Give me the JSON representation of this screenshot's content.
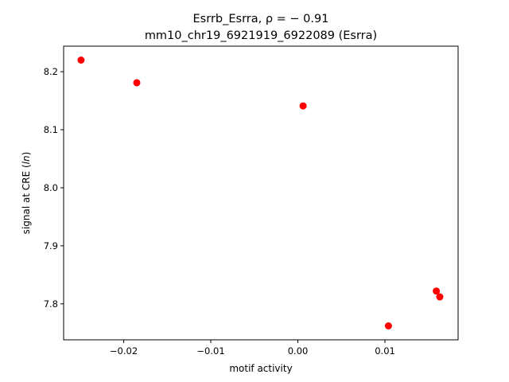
{
  "chart_data": {
    "type": "scatter",
    "title": "Esrrb_Esrra, ρ = − 0.91",
    "subtitle": "mm10_chr19_6921919_6922089 (Esrra)",
    "xlabel": "motif activity",
    "ylabel": "signal at CRE (ln)",
    "ylabel_main": "signal at CRE (",
    "ylabel_italic": "ln",
    "ylabel_end": ")",
    "xlim": [
      -0.0269,
      0.0184
    ],
    "ylim": [
      7.738,
      8.244
    ],
    "x_ticks": [
      -0.02,
      -0.01,
      0.0,
      0.01
    ],
    "x_tick_labels": [
      "−0.02",
      "−0.01",
      "0.00",
      "0.01"
    ],
    "y_ticks": [
      7.8,
      7.9,
      8.0,
      8.1,
      8.2
    ],
    "y_tick_labels": [
      "7.8",
      "7.9",
      "8.0",
      "8.1",
      "8.2"
    ],
    "grid": false,
    "marker_color": "#ff0000",
    "points": [
      {
        "x": -0.0249,
        "y": 8.22
      },
      {
        "x": -0.0185,
        "y": 8.181
      },
      {
        "x": 0.0006,
        "y": 8.141
      },
      {
        "x": 0.0104,
        "y": 7.762
      },
      {
        "x": 0.0159,
        "y": 7.822
      },
      {
        "x": 0.0163,
        "y": 7.812
      }
    ]
  }
}
